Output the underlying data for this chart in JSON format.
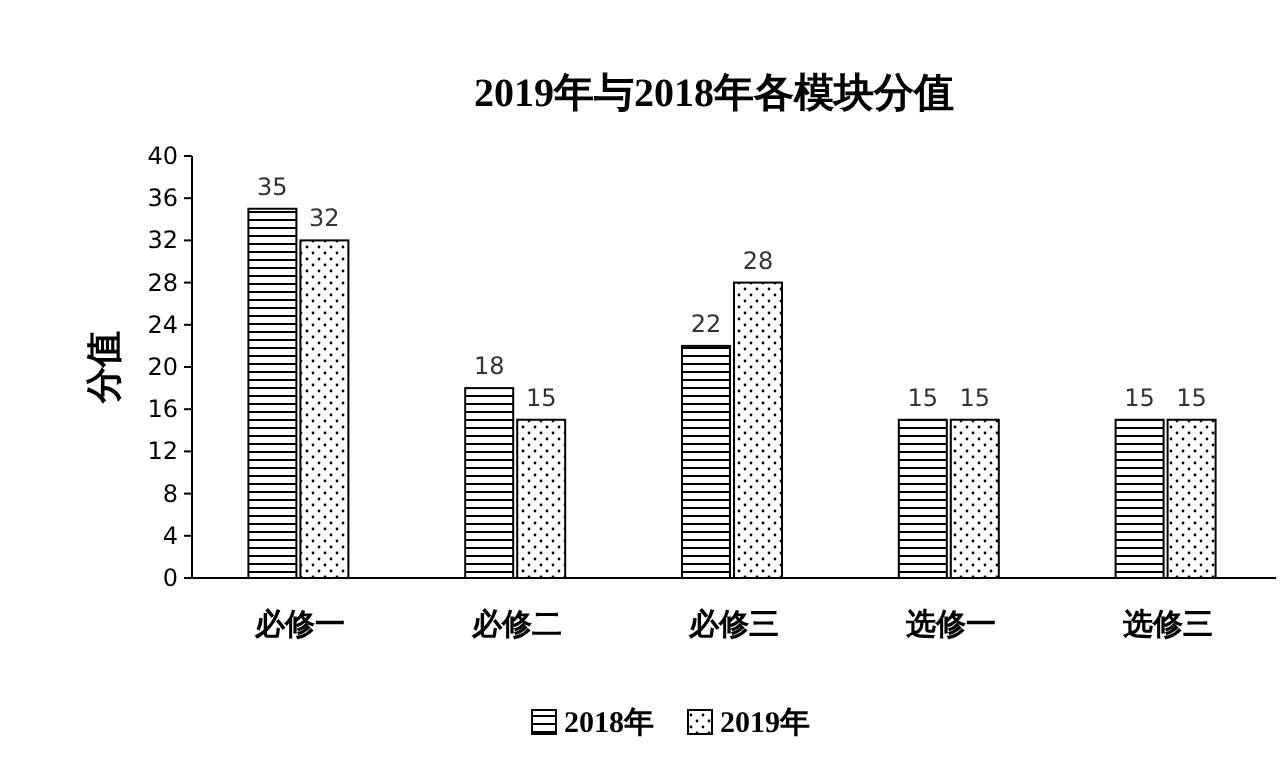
{
  "chart_data": {
    "type": "bar",
    "title": "2019年与2018年各模块分值",
    "ylabel": "分值",
    "categories": [
      "必修一",
      "必修二",
      "必修三",
      "选修一",
      "选修三"
    ],
    "series": [
      {
        "name": "2018年",
        "color": "#000000",
        "values": [
          35,
          18,
          22,
          15,
          15
        ]
      },
      {
        "name": "2019年",
        "color": "#000000",
        "values": [
          32,
          15,
          28,
          15,
          15
        ]
      }
    ],
    "ylim": [
      0,
      40
    ],
    "yticks": [
      0,
      4,
      8,
      12,
      16,
      20,
      24,
      28,
      32,
      36,
      40
    ],
    "data_labels": true,
    "grid": false,
    "legend": "bottom"
  }
}
